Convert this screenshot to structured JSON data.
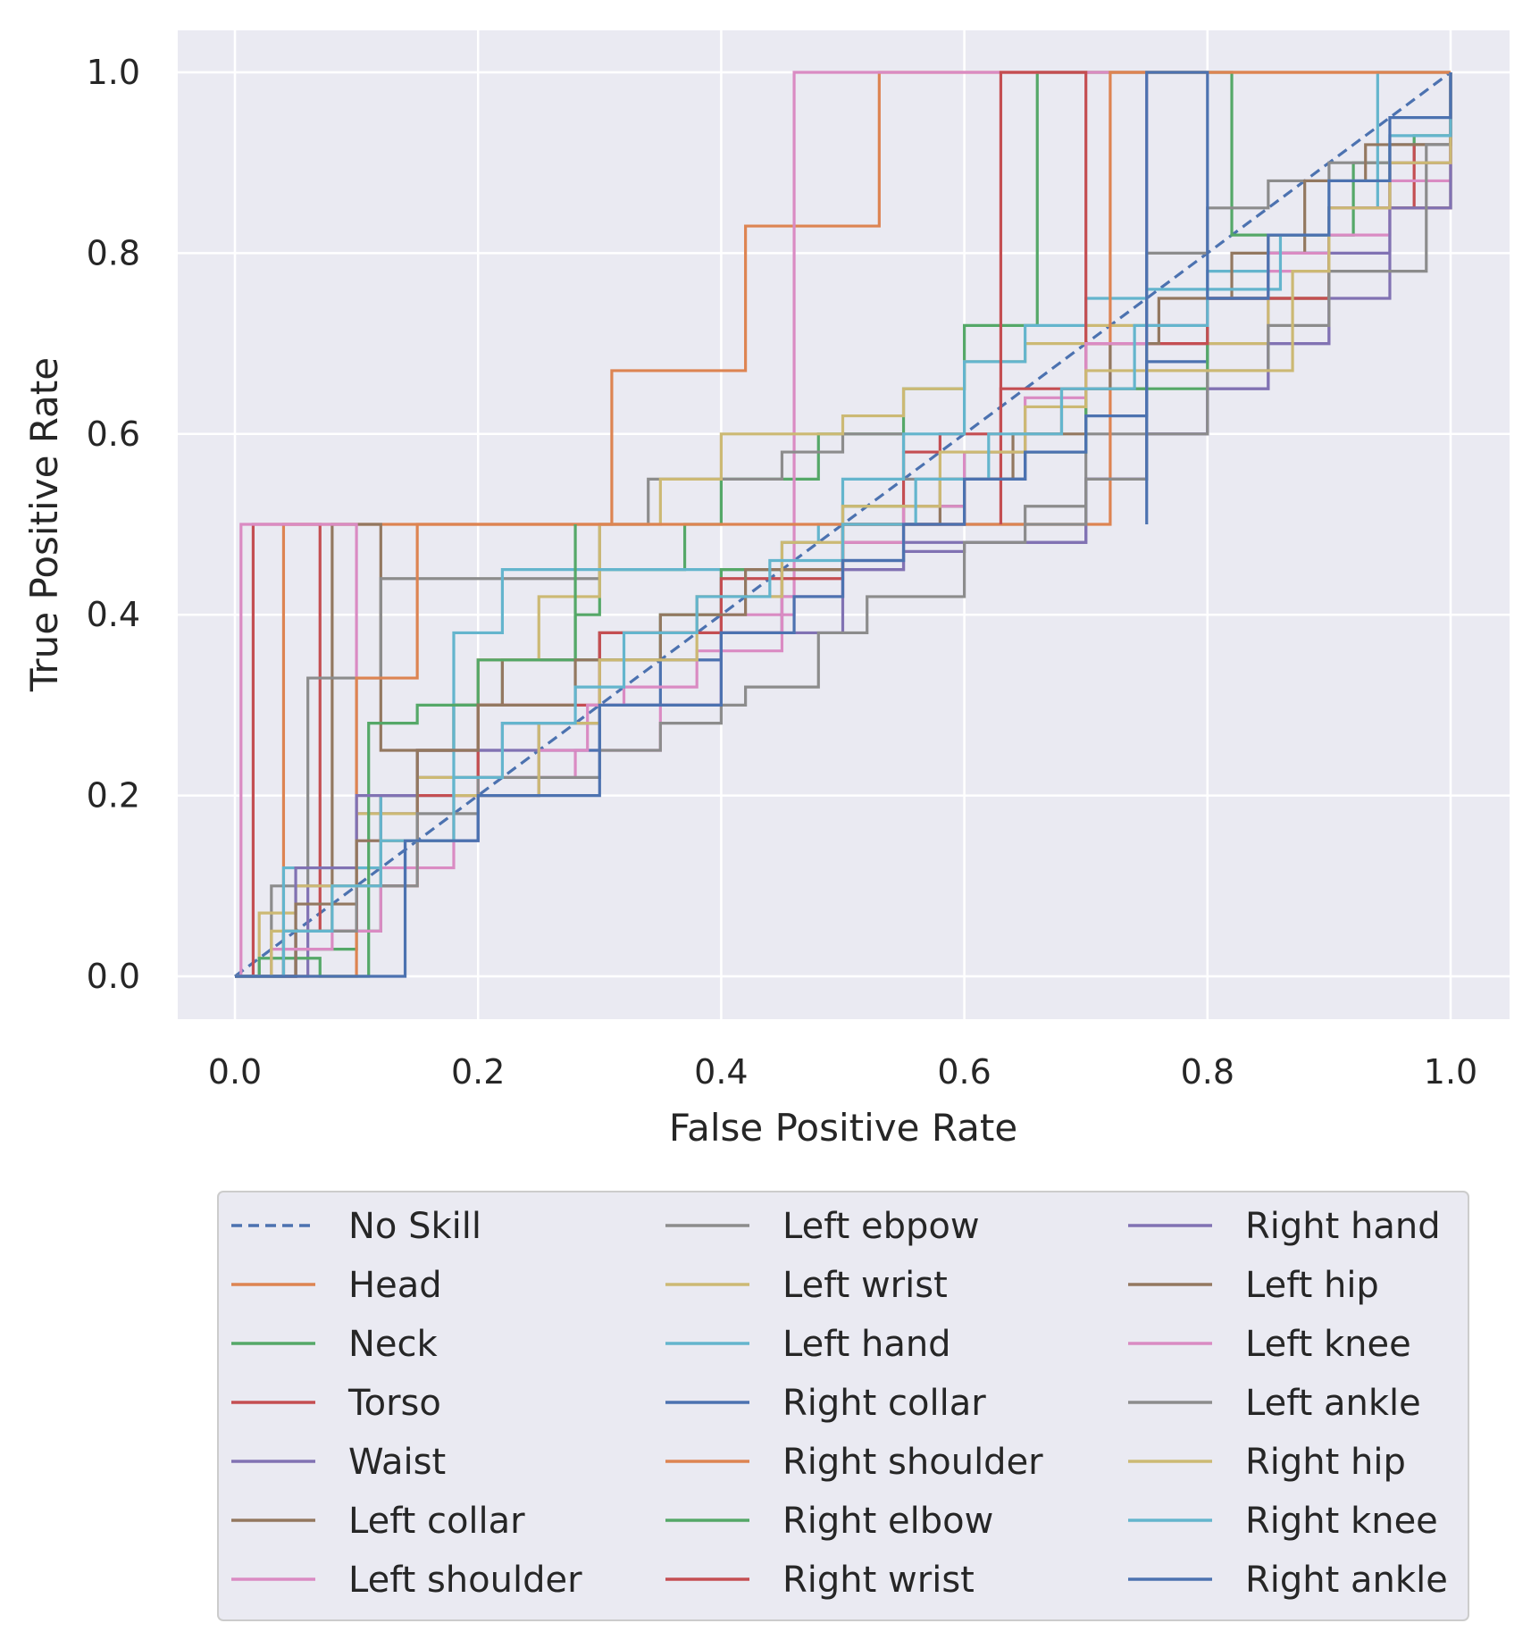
{
  "chart_data": {
    "type": "line",
    "title": "",
    "xlabel": "False Positive Rate",
    "ylabel": "True Positive Rate",
    "xlim": [
      -0.05,
      1.05
    ],
    "ylim": [
      -0.05,
      1.05
    ],
    "xticks": [
      "0.0",
      "0.2",
      "0.4",
      "0.6",
      "0.8",
      "1.0"
    ],
    "yticks": [
      "0.0",
      "0.2",
      "0.4",
      "0.6",
      "0.8",
      "1.0"
    ],
    "grid": true,
    "legend_position": "bottom",
    "legend_columns": 3,
    "series": [
      {
        "name": "No Skill",
        "color": "#4c72b0",
        "dashed": true,
        "x": [
          0,
          1
        ],
        "y": [
          0,
          1
        ]
      },
      {
        "name": "Head",
        "color": "#dd8452",
        "x": [
          0,
          0.04,
          0.04,
          0.31,
          0.31,
          0.42,
          0.42,
          0.53,
          0.53,
          1
        ],
        "y": [
          0,
          0,
          0.5,
          0.5,
          0.67,
          0.67,
          0.83,
          0.83,
          1,
          1
        ]
      },
      {
        "name": "Neck",
        "color": "#55a868",
        "x": [
          0,
          0.05,
          0.1,
          0.12,
          0.15,
          0.18,
          0.22,
          0.28,
          0.3,
          0.37,
          0.4,
          0.48,
          0.55,
          0.6,
          0.66,
          0.66,
          0.72,
          0.82,
          0.92,
          0.97,
          1
        ],
        "y": [
          0,
          0.03,
          0.05,
          0.2,
          0.25,
          0.3,
          0.35,
          0.4,
          0.45,
          0.5,
          0.55,
          0.6,
          0.65,
          0.72,
          0.75,
          1,
          1,
          0.82,
          0.9,
          0.93,
          1
        ]
      },
      {
        "name": "Torso",
        "color": "#c44e52",
        "x": [
          0,
          0.015,
          0.015,
          0.07,
          0.1,
          0.12,
          0.15,
          0.2,
          0.3,
          0.45,
          0.5,
          0.55,
          0.58,
          0.63,
          0.63,
          0.7,
          0.8,
          0.9,
          0.97,
          1
        ],
        "y": [
          0,
          0,
          0.5,
          0.05,
          0.12,
          0.2,
          0.25,
          0.35,
          0.38,
          0.45,
          0.5,
          0.58,
          0.6,
          0.62,
          0.65,
          0.7,
          0.75,
          0.85,
          0.92,
          1
        ]
      },
      {
        "name": "Waist",
        "color": "#8172b3",
        "x": [
          0,
          0.06,
          0.1,
          0.15,
          0.2,
          0.25,
          0.3,
          0.4,
          0.5,
          0.55,
          0.6,
          0.65,
          0.7,
          0.75,
          0.8,
          0.85,
          0.9,
          0.95,
          1
        ],
        "y": [
          0,
          0.1,
          0.18,
          0.22,
          0.25,
          0.28,
          0.35,
          0.45,
          0.45,
          0.47,
          0.48,
          0.48,
          0.55,
          0.6,
          0.65,
          0.7,
          0.8,
          0.9,
          1
        ]
      },
      {
        "name": "Left collar",
        "color": "#937860",
        "x": [
          0,
          0.04,
          0.08,
          0.08,
          0.12,
          0.18,
          0.22,
          0.3,
          0.38,
          0.45,
          0.5,
          0.55,
          0.6,
          0.65,
          0.7,
          0.75,
          0.8,
          0.85,
          0.9,
          0.95,
          1
        ],
        "y": [
          0,
          0.05,
          0.05,
          0.5,
          0.25,
          0.3,
          0.35,
          0.38,
          0.42,
          0.45,
          0.48,
          0.52,
          0.55,
          0.6,
          0.65,
          0.7,
          0.75,
          0.82,
          0.85,
          0.9,
          1
        ]
      },
      {
        "name": "Left shoulder",
        "color": "#da8bc3",
        "x": [
          0,
          0.005,
          0.005,
          0.04,
          0.1,
          0.2,
          0.28,
          0.35,
          0.4,
          0.46,
          0.46,
          0.72,
          0.75,
          0.85,
          0.9,
          0.95,
          1
        ],
        "y": [
          0,
          0,
          0.5,
          0.5,
          0.15,
          0.22,
          0.25,
          0.3,
          0.4,
          0.5,
          1,
          1,
          0.7,
          0.78,
          0.82,
          0.88,
          1
        ]
      },
      {
        "name": "Left ebpow",
        "color": "#8c8c8c",
        "x": [
          0,
          0.03,
          0.06,
          0.09,
          0.12,
          0.2,
          0.3,
          0.34,
          0.4,
          0.45,
          0.5,
          0.55,
          0.6,
          0.65,
          0.7,
          0.75,
          0.8,
          0.85,
          0.9,
          0.95,
          1
        ],
        "y": [
          0,
          0.1,
          0.33,
          0.33,
          0.44,
          0.44,
          0.5,
          0.55,
          0.55,
          0.58,
          0.6,
          0.55,
          0.5,
          0.52,
          0.6,
          0.8,
          0.85,
          0.88,
          0.9,
          0.92,
          1
        ]
      },
      {
        "name": "Left wrist",
        "color": "#ccb974",
        "x": [
          0,
          0.02,
          0.05,
          0.1,
          0.15,
          0.2,
          0.25,
          0.3,
          0.35,
          0.4,
          0.45,
          0.5,
          0.55,
          0.6,
          0.65,
          0.7,
          0.75,
          0.8,
          0.85,
          0.9,
          0.95,
          1
        ],
        "y": [
          0,
          0.07,
          0.1,
          0.18,
          0.22,
          0.35,
          0.42,
          0.5,
          0.55,
          0.6,
          0.6,
          0.62,
          0.65,
          0.68,
          0.7,
          0.72,
          0.67,
          0.7,
          0.75,
          0.85,
          0.92,
          1
        ]
      },
      {
        "name": "Left hand",
        "color": "#64b5cd",
        "x": [
          0,
          0.04,
          0.08,
          0.12,
          0.18,
          0.22,
          0.28,
          0.35,
          0.4,
          0.45,
          0.48,
          0.5,
          0.55,
          0.6,
          0.65,
          0.7,
          0.75,
          0.8,
          0.85,
          0.9,
          0.94,
          0.94,
          1
        ],
        "y": [
          0,
          0.12,
          0.12,
          0.2,
          0.38,
          0.45,
          0.45,
          0.45,
          0.45,
          0.48,
          0.5,
          0.55,
          0.6,
          0.68,
          0.72,
          0.75,
          0.76,
          0.78,
          0.8,
          0.85,
          0.9,
          1,
          1
        ]
      },
      {
        "name": "Right collar",
        "color": "#4c72b0",
        "x": [
          0,
          0.05,
          0.1,
          0.14,
          0.2,
          0.25,
          0.3,
          0.35,
          0.4,
          0.45,
          0.5,
          0.55,
          0.6,
          0.65,
          0.7,
          0.75,
          0.8,
          0.85,
          0.9,
          0.95,
          1
        ],
        "y": [
          0,
          0.05,
          0.1,
          0.15,
          0.2,
          0.25,
          0.3,
          0.35,
          0.38,
          0.42,
          0.46,
          0.5,
          0.55,
          0.58,
          0.62,
          0.68,
          0.75,
          0.8,
          0.85,
          0.92,
          1
        ]
      },
      {
        "name": "Right shoulder",
        "color": "#dd8452",
        "x": [
          0,
          0.1,
          0.1,
          0.15,
          0.15,
          0.72,
          0.72,
          1
        ],
        "y": [
          0,
          0,
          0.33,
          0.33,
          0.5,
          0.5,
          1,
          1
        ]
      },
      {
        "name": "Right elbow",
        "color": "#55a868",
        "x": [
          0,
          0.02,
          0.07,
          0.11,
          0.11,
          0.15,
          0.2,
          0.28,
          0.28,
          0.35,
          0.4,
          0.5,
          0.6,
          0.7,
          0.8,
          0.9,
          1
        ],
        "y": [
          0,
          0.02,
          0,
          0.05,
          0.28,
          0.3,
          0.35,
          0.5,
          0.35,
          0.4,
          0.45,
          0.52,
          0.58,
          0.65,
          0.75,
          0.85,
          1
        ]
      },
      {
        "name": "Right wrist",
        "color": "#c44e52",
        "x": [
          0,
          0.05,
          0.1,
          0.15,
          0.2,
          0.3,
          0.4,
          0.5,
          0.6,
          0.63,
          0.63,
          0.7,
          0.8,
          0.9,
          1
        ],
        "y": [
          0,
          0.05,
          0.1,
          0.2,
          0.3,
          0.38,
          0.44,
          0.5,
          0.55,
          0.5,
          1,
          0.7,
          0.75,
          0.85,
          1
        ]
      },
      {
        "name": "Right hand",
        "color": "#8172b3",
        "x": [
          0,
          0.05,
          0.1,
          0.15,
          0.22,
          0.3,
          0.4,
          0.5,
          0.55,
          0.6,
          0.68,
          0.7,
          0.75,
          0.8,
          0.85,
          0.9,
          0.95,
          1
        ],
        "y": [
          0,
          0.12,
          0.2,
          0.25,
          0.28,
          0.3,
          0.38,
          0.45,
          0.48,
          0.48,
          0.48,
          0.55,
          0.6,
          0.65,
          0.7,
          0.75,
          0.85,
          1
        ]
      },
      {
        "name": "Left hip",
        "color": "#937860",
        "x": [
          0,
          0.05,
          0.1,
          0.15,
          0.2,
          0.28,
          0.35,
          0.42,
          0.5,
          0.58,
          0.64,
          0.68,
          0.72,
          0.76,
          0.82,
          0.88,
          0.93,
          1
        ],
        "y": [
          0,
          0.08,
          0.15,
          0.25,
          0.3,
          0.35,
          0.4,
          0.45,
          0.5,
          0.55,
          0.6,
          0.65,
          0.7,
          0.75,
          0.8,
          0.88,
          0.92,
          1
        ]
      },
      {
        "name": "Left knee",
        "color": "#da8bc3",
        "x": [
          0,
          0.03,
          0.08,
          0.12,
          0.18,
          0.25,
          0.29,
          0.32,
          0.38,
          0.45,
          0.5,
          0.55,
          0.6,
          0.65,
          0.7,
          0.75,
          0.8,
          0.85,
          0.9,
          0.95,
          1
        ],
        "y": [
          0,
          0.03,
          0.05,
          0.12,
          0.2,
          0.25,
          0.3,
          0.32,
          0.36,
          0.42,
          0.48,
          0.52,
          0.58,
          0.64,
          0.7,
          0.72,
          0.75,
          0.8,
          0.85,
          0.9,
          1
        ]
      },
      {
        "name": "Left ankle",
        "color": "#8c8c8c",
        "x": [
          0,
          0.04,
          0.1,
          0.15,
          0.2,
          0.3,
          0.35,
          0.4,
          0.42,
          0.48,
          0.52,
          0.6,
          0.65,
          0.7,
          0.75,
          0.8,
          0.85,
          0.9,
          0.95,
          0.98,
          1
        ],
        "y": [
          0,
          0.05,
          0.1,
          0.18,
          0.22,
          0.25,
          0.28,
          0.3,
          0.32,
          0.38,
          0.42,
          0.48,
          0.5,
          0.55,
          0.6,
          0.67,
          0.72,
          0.78,
          0.78,
          0.92,
          1
        ]
      },
      {
        "name": "Right hip",
        "color": "#ccb974",
        "x": [
          0,
          0.03,
          0.08,
          0.12,
          0.18,
          0.25,
          0.3,
          0.38,
          0.45,
          0.5,
          0.58,
          0.65,
          0.7,
          0.75,
          0.82,
          0.87,
          0.9,
          0.95,
          1
        ],
        "y": [
          0,
          0.05,
          0.1,
          0.15,
          0.2,
          0.28,
          0.35,
          0.42,
          0.48,
          0.52,
          0.58,
          0.63,
          0.67,
          0.67,
          0.67,
          0.78,
          0.85,
          0.9,
          1
        ]
      },
      {
        "name": "Right knee",
        "color": "#64b5cd",
        "x": [
          0,
          0.04,
          0.08,
          0.12,
          0.18,
          0.22,
          0.28,
          0.32,
          0.38,
          0.44,
          0.5,
          0.56,
          0.62,
          0.68,
          0.74,
          0.8,
          0.86,
          0.9,
          0.95,
          1
        ],
        "y": [
          0,
          0.05,
          0.1,
          0.15,
          0.22,
          0.28,
          0.32,
          0.38,
          0.42,
          0.46,
          0.5,
          0.55,
          0.6,
          0.65,
          0.72,
          0.76,
          0.82,
          0.88,
          0.93,
          1
        ]
      },
      {
        "name": "Right ankle",
        "color": "#4c72b0",
        "x": [
          0,
          0.14,
          0.14,
          0.2,
          0.3,
          0.4,
          0.46,
          0.5,
          0.55,
          0.6,
          0.65,
          0.7,
          0.75,
          0.75,
          0.8,
          0.85,
          0.9,
          0.95,
          1
        ],
        "y": [
          0,
          0,
          0.15,
          0.2,
          0.3,
          0.38,
          0.42,
          0.46,
          0.5,
          0.55,
          0.58,
          0.62,
          0.5,
          1,
          0.75,
          0.82,
          0.88,
          0.95,
          1
        ]
      }
    ]
  }
}
